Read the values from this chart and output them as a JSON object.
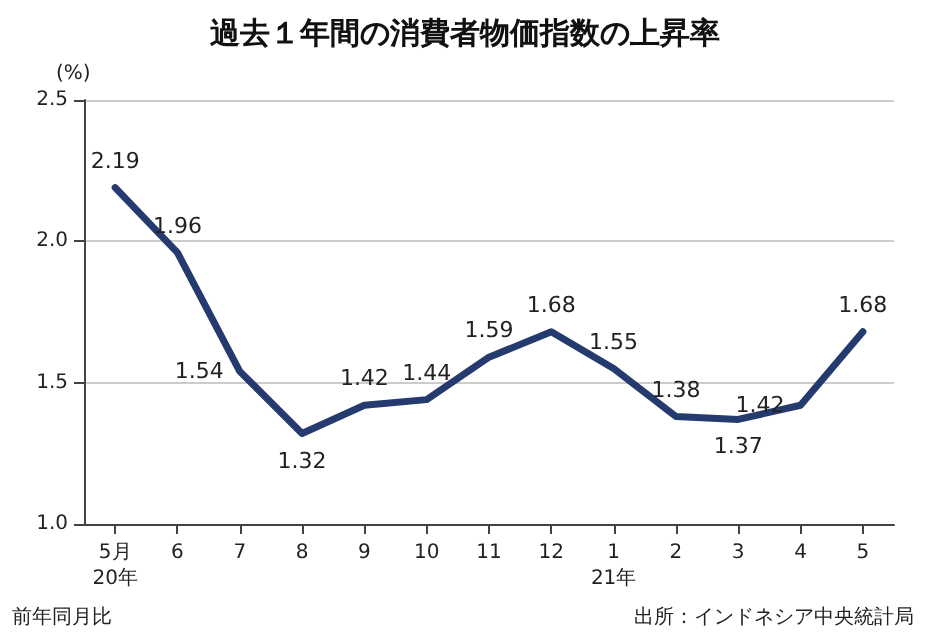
{
  "chart_data": {
    "type": "line",
    "title": "過去１年間の消費者物価指数の上昇率",
    "ylabel": "(%)",
    "categories": [
      "5月\n20年",
      "6",
      "7",
      "8",
      "9",
      "10",
      "11",
      "12",
      "1\n21年",
      "2",
      "3",
      "4",
      "5"
    ],
    "series": [
      {
        "color": "#253a6e",
        "values": [
          2.19,
          1.96,
          1.54,
          1.32,
          1.42,
          1.44,
          1.59,
          1.68,
          1.55,
          1.38,
          1.37,
          1.42,
          1.68
        ]
      }
    ],
    "ylim": [
      1.0,
      2.5
    ],
    "yticks": [
      {
        "value": 1.0,
        "label": "1.0"
      },
      {
        "value": 1.5,
        "label": "1.5"
      },
      {
        "value": 2.0,
        "label": "2.0"
      },
      {
        "value": 2.5,
        "label": "2.5"
      }
    ],
    "grid": "y",
    "marker": "none",
    "line_style": "solid",
    "data_labels": true,
    "annotations": [
      "前年同月比",
      "出所：インドネシア中央統計局"
    ]
  }
}
